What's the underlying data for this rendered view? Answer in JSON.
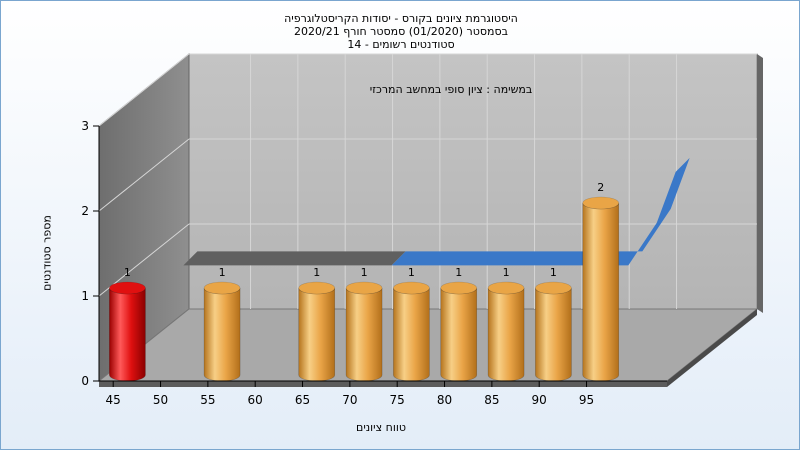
{
  "chart_data": {
    "type": "bar",
    "title_lines": [
      "היסטוגרמת ציונים בקורס - יסודות הקריסטלוגרפיה",
      "בסמסטר  (01/2020)  סמסטר חורף  2020/21",
      "סטודנטים רשומים - 14"
    ],
    "subtitle": "במשימה : ציון סופי במחשב המרכזי",
    "xlabel": "טווח ציונים",
    "ylabel": "מספר סטודנטים",
    "x_ticks": [
      45,
      50,
      55,
      60,
      65,
      70,
      75,
      80,
      85,
      90,
      95
    ],
    "y_ticks": [
      0,
      1,
      2,
      3
    ],
    "ylim": [
      0,
      3
    ],
    "bars": [
      {
        "x": 46.5,
        "value": 1,
        "label": "1",
        "color": "#e01010"
      },
      {
        "x": 56.5,
        "value": 1,
        "label": "1",
        "color": "#e9a546"
      },
      {
        "x": 66.5,
        "value": 1,
        "label": "1",
        "color": "#e9a546"
      },
      {
        "x": 71.5,
        "value": 1,
        "label": "1",
        "color": "#e9a546"
      },
      {
        "x": 76.5,
        "value": 1,
        "label": "1",
        "color": "#e9a546"
      },
      {
        "x": 81.5,
        "value": 1,
        "label": "1",
        "color": "#e9a546"
      },
      {
        "x": 86.5,
        "value": 1,
        "label": "1",
        "color": "#e9a546"
      },
      {
        "x": 91.5,
        "value": 1,
        "label": "1",
        "color": "#e9a546"
      },
      {
        "x": 96.5,
        "value": 2,
        "label": "2",
        "color": "#e9a546"
      }
    ],
    "line_series": [
      {
        "color": "#606060",
        "points": [
          [
            48,
            1
          ],
          [
            70,
            1
          ]
        ]
      },
      {
        "color": "#3a78c8",
        "points": [
          [
            70,
            1
          ],
          [
            92,
            1
          ],
          [
            95,
            1
          ],
          [
            98,
            1.5
          ],
          [
            100,
            2.1
          ]
        ]
      }
    ],
    "grid": true,
    "colors": {
      "wall": "#bdbdbd",
      "side_wall": "#8c8c8c",
      "floor": "#a8a8a8"
    }
  }
}
